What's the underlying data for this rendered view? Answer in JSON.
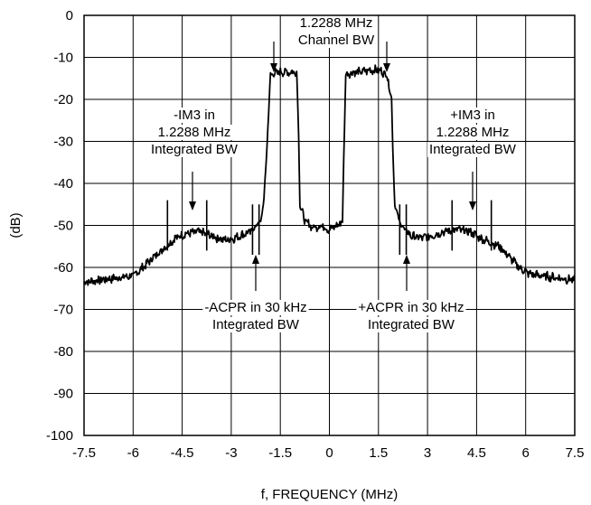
{
  "chart_data": {
    "type": "line",
    "xlabel": "f, FREQUENCY (MHz)",
    "ylabel": "(dB)",
    "xlim": [
      -7.5,
      7.5
    ],
    "ylim": [
      -100,
      0
    ],
    "x_ticks": [
      -7.5,
      -6,
      -4.5,
      -3,
      -1.5,
      0,
      1.5,
      3,
      4.5,
      6,
      7.5
    ],
    "x_tick_labels": [
      "-7.5",
      "-6",
      "-4.5",
      "-3",
      "-1.5",
      "0",
      "1.5",
      "3",
      "4.5",
      "6",
      "7.5"
    ],
    "y_ticks": [
      0,
      -10,
      -20,
      -30,
      -40,
      -50,
      -60,
      -70,
      -80,
      -90,
      -100
    ],
    "y_tick_labels": [
      "0",
      "-10",
      "-20",
      "-30",
      "-40",
      "-50",
      "-60",
      "-70",
      "-80",
      "-90",
      "-100"
    ],
    "grid": true,
    "series": [
      {
        "x": [
          -7.5,
          -6.5,
          -6,
          -5.7,
          -5.3,
          -5,
          -4.7,
          -4.4,
          -4,
          -3.6,
          -3.2,
          -2.9,
          -2.6,
          -2.4,
          -2.25,
          -2.1,
          -2.0,
          -1.9,
          -1.8,
          -1.5,
          -1.2,
          -1.0,
          -0.95,
          -0.9,
          -0.75,
          -0.5,
          -0.25,
          0,
          0.25,
          0.4,
          0.45,
          0.5,
          0.75,
          1.0,
          1.25,
          1.5,
          1.75,
          1.9,
          1.95,
          2.0,
          2.1,
          2.2,
          2.3,
          2.5,
          2.8,
          3.1,
          3.5,
          3.9,
          4.3,
          4.6,
          4.9,
          5.2,
          5.5,
          5.8,
          6.1,
          6.5,
          7.0,
          7.5
        ],
        "y": [
          -63.5,
          -62.5,
          -62,
          -60,
          -57,
          -55,
          -53,
          -52,
          -51.5,
          -52.5,
          -53.5,
          -53,
          -52,
          -51.5,
          -50,
          -49,
          -44,
          -30,
          -14,
          -13.5,
          -13.5,
          -13.5,
          -25,
          -45,
          -49,
          -50.5,
          -50,
          -51,
          -50,
          -49,
          -30,
          -14,
          -13.5,
          -13.5,
          -13,
          -13,
          -14,
          -20,
          -35,
          -45,
          -48,
          -50,
          -51,
          -52.5,
          -53,
          -52.5,
          -51.5,
          -51,
          -51.5,
          -53,
          -54,
          -55,
          -57.5,
          -60,
          -61.5,
          -62,
          -62.5,
          -63
        ]
      }
    ],
    "annotations": [
      {
        "lines": [
          "1.2288 MHz",
          "Channel BW"
        ]
      },
      {
        "lines": [
          "-IM3 in",
          "1.2288 MHz",
          "Integrated BW"
        ]
      },
      {
        "lines": [
          "+IM3 in",
          "1.2288 MHz",
          "Integrated BW"
        ]
      },
      {
        "lines": [
          "-ACPR in 30 kHz",
          "Integrated BW"
        ]
      },
      {
        "lines": [
          "+ACPR in 30 kHz",
          "Integrated BW"
        ]
      }
    ],
    "markers_x": [
      -4.95,
      -3.75,
      -2.35,
      -2.15,
      2.15,
      2.35,
      3.75,
      4.95
    ]
  }
}
